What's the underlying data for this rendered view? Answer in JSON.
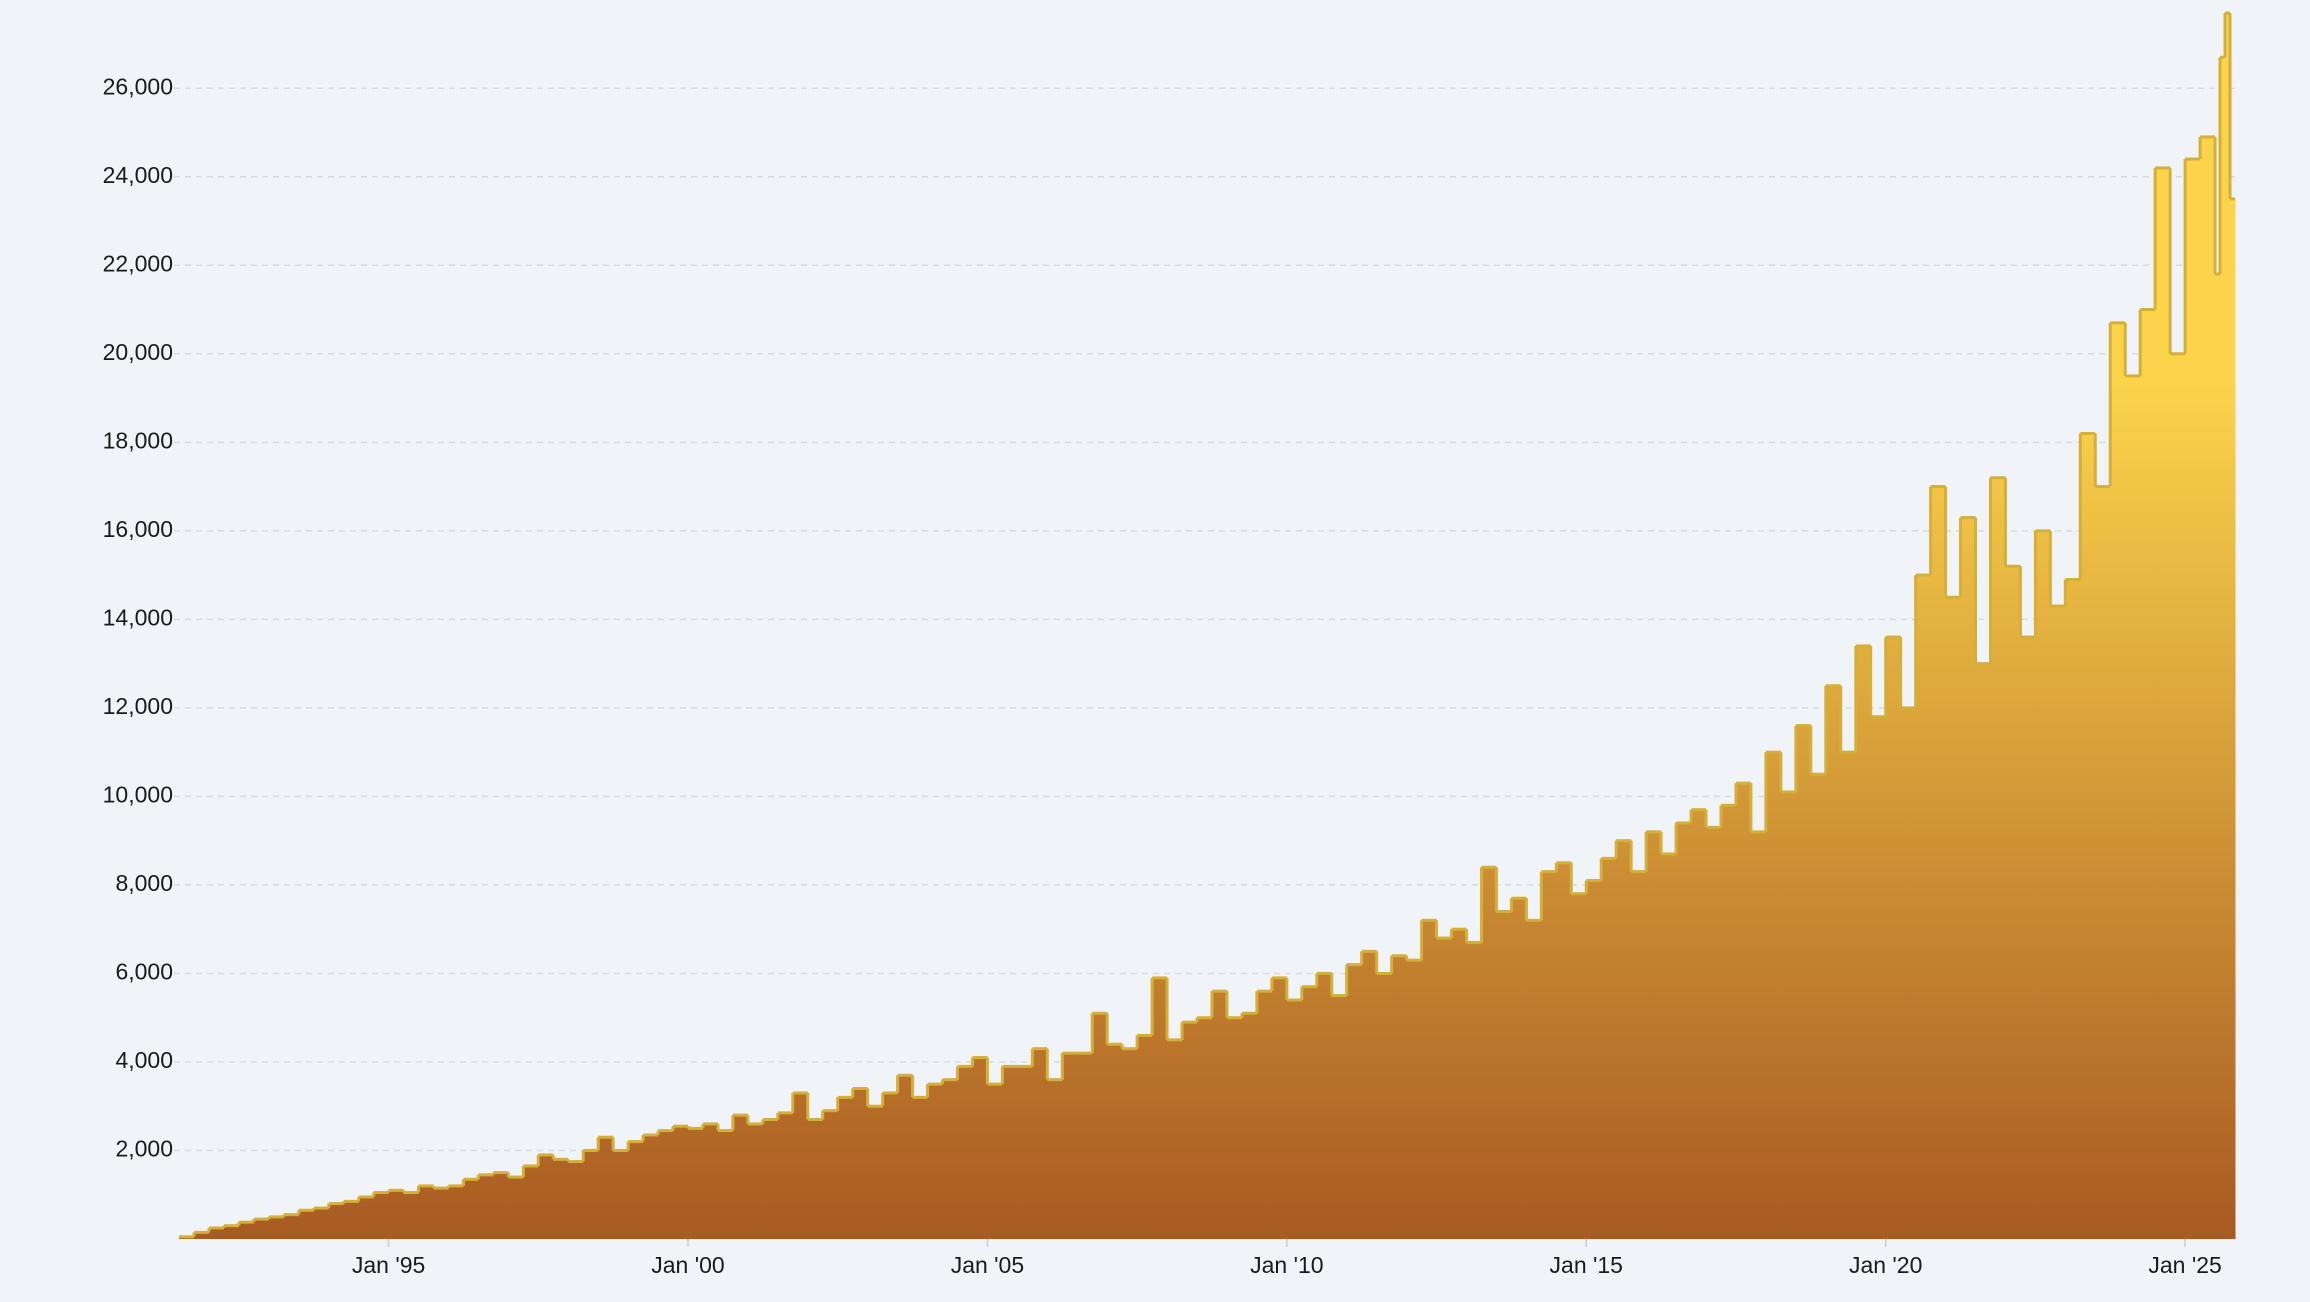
{
  "chart_data": {
    "type": "step-area",
    "x": [
      "1991-07",
      "1991-10",
      "1992-01",
      "1992-04",
      "1992-07",
      "1992-10",
      "1993-01",
      "1993-04",
      "1993-07",
      "1993-10",
      "1994-01",
      "1994-04",
      "1994-07",
      "1994-10",
      "1995-01",
      "1995-04",
      "1995-07",
      "1995-10",
      "1996-01",
      "1996-04",
      "1996-07",
      "1996-10",
      "1997-01",
      "1997-04",
      "1997-07",
      "1997-10",
      "1998-01",
      "1998-04",
      "1998-07",
      "1998-10",
      "1999-01",
      "1999-04",
      "1999-07",
      "1999-10",
      "2000-01",
      "2000-04",
      "2000-07",
      "2000-10",
      "2001-01",
      "2001-04",
      "2001-07",
      "2001-10",
      "2002-01",
      "2002-04",
      "2002-07",
      "2002-10",
      "2003-01",
      "2003-04",
      "2003-07",
      "2003-10",
      "2004-01",
      "2004-04",
      "2004-07",
      "2004-10",
      "2005-01",
      "2005-04",
      "2005-07",
      "2005-10",
      "2006-01",
      "2006-04",
      "2006-07",
      "2006-10",
      "2007-01",
      "2007-04",
      "2007-07",
      "2007-10",
      "2008-01",
      "2008-04",
      "2008-07",
      "2008-10",
      "2009-01",
      "2009-04",
      "2009-07",
      "2009-10",
      "2010-01",
      "2010-04",
      "2010-07",
      "2010-10",
      "2011-01",
      "2011-04",
      "2011-07",
      "2011-10",
      "2012-01",
      "2012-04",
      "2012-07",
      "2012-10",
      "2013-01",
      "2013-04",
      "2013-07",
      "2013-10",
      "2014-01",
      "2014-04",
      "2014-07",
      "2014-10",
      "2015-01",
      "2015-04",
      "2015-07",
      "2015-10",
      "2016-01",
      "2016-04",
      "2016-07",
      "2016-10",
      "2017-01",
      "2017-04",
      "2017-07",
      "2017-10",
      "2018-01",
      "2018-04",
      "2018-07",
      "2018-10",
      "2019-01",
      "2019-04",
      "2019-07",
      "2019-10",
      "2020-01",
      "2020-04",
      "2020-07",
      "2020-10",
      "2021-01",
      "2021-04",
      "2021-07",
      "2021-10",
      "2022-01",
      "2022-04",
      "2022-07",
      "2022-10",
      "2023-01",
      "2023-04",
      "2023-07",
      "2023-10",
      "2024-01",
      "2024-04",
      "2024-07",
      "2024-10",
      "2025-01",
      "2025-04",
      "2025-07",
      "2025-08",
      "2025-09",
      "2025-10"
    ],
    "values": [
      50,
      150,
      250,
      300,
      380,
      450,
      500,
      550,
      650,
      700,
      800,
      850,
      950,
      1050,
      1100,
      1050,
      1200,
      1150,
      1200,
      1350,
      1450,
      1500,
      1400,
      1650,
      1900,
      1800,
      1750,
      2000,
      2300,
      2000,
      2200,
      2350,
      2450,
      2550,
      2500,
      2600,
      2450,
      2800,
      2600,
      2700,
      2850,
      3300,
      2700,
      2900,
      3200,
      3400,
      3000,
      3300,
      3700,
      3200,
      3500,
      3600,
      3900,
      4100,
      3500,
      3900,
      3900,
      4300,
      3600,
      4200,
      4200,
      5100,
      4400,
      4300,
      4600,
      5900,
      4500,
      4900,
      5000,
      5600,
      5000,
      5100,
      5600,
      5900,
      5400,
      5700,
      6000,
      5500,
      6200,
      6500,
      6000,
      6400,
      6300,
      7200,
      6800,
      7000,
      6700,
      8400,
      7400,
      7700,
      7200,
      8300,
      8500,
      7800,
      8100,
      8600,
      9000,
      8300,
      9200,
      8700,
      9400,
      9700,
      9300,
      9800,
      10300,
      9200,
      11000,
      10100,
      11600,
      10500,
      12500,
      11000,
      13400,
      11800,
      13600,
      12000,
      15000,
      17000,
      14500,
      16300,
      13000,
      17200,
      15200,
      13600,
      16000,
      14300,
      14900,
      18200,
      17000,
      20700,
      19500,
      21000,
      24200,
      20000,
      24400,
      24900,
      21800,
      26700,
      27700,
      23500
    ],
    "xlim": [
      "1991-06",
      "2025-11"
    ],
    "xticks": [
      {
        "value": "1995-01",
        "label": "Jan '95"
      },
      {
        "value": "2000-01",
        "label": "Jan '00"
      },
      {
        "value": "2005-01",
        "label": "Jan '05"
      },
      {
        "value": "2010-01",
        "label": "Jan '10"
      },
      {
        "value": "2015-01",
        "label": "Jan '15"
      },
      {
        "value": "2020-01",
        "label": "Jan '20"
      },
      {
        "value": "2025-01",
        "label": "Jan '25"
      }
    ],
    "ylim": [
      0,
      27700
    ],
    "yticks": [
      {
        "value": 2000,
        "label": "2,000"
      },
      {
        "value": 4000,
        "label": "4,000"
      },
      {
        "value": 6000,
        "label": "6,000"
      },
      {
        "value": 8000,
        "label": "8,000"
      },
      {
        "value": 10000,
        "label": "10,000"
      },
      {
        "value": 12000,
        "label": "12,000"
      },
      {
        "value": 14000,
        "label": "14,000"
      },
      {
        "value": 16000,
        "label": "16,000"
      },
      {
        "value": 18000,
        "label": "18,000"
      },
      {
        "value": 20000,
        "label": "20,000"
      },
      {
        "value": 22000,
        "label": "22,000"
      },
      {
        "value": 24000,
        "label": "24,000"
      },
      {
        "value": 26000,
        "label": "26,000"
      }
    ],
    "grid": true,
    "color": "#d4b03a",
    "fill_top": "#fbd44b",
    "fill_bottom": "#a85a22"
  }
}
